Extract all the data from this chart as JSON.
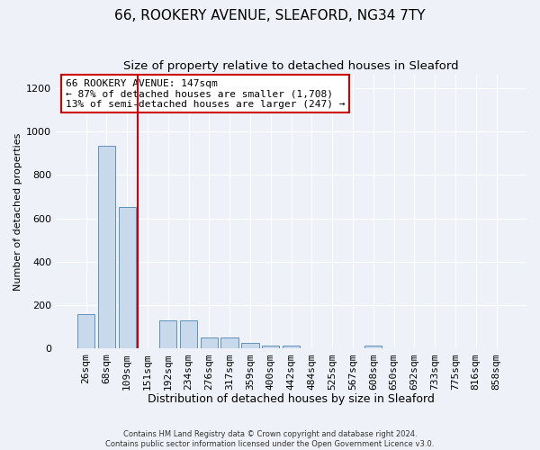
{
  "title1": "66, ROOKERY AVENUE, SLEAFORD, NG34 7TY",
  "title2": "Size of property relative to detached houses in Sleaford",
  "xlabel": "Distribution of detached houses by size in Sleaford",
  "ylabel": "Number of detached properties",
  "categories": [
    "26sqm",
    "68sqm",
    "109sqm",
    "151sqm",
    "192sqm",
    "234sqm",
    "276sqm",
    "317sqm",
    "359sqm",
    "400sqm",
    "442sqm",
    "484sqm",
    "525sqm",
    "567sqm",
    "608sqm",
    "650sqm",
    "692sqm",
    "733sqm",
    "775sqm",
    "816sqm",
    "858sqm"
  ],
  "values": [
    160,
    935,
    650,
    0,
    130,
    130,
    50,
    50,
    28,
    15,
    15,
    0,
    0,
    0,
    15,
    0,
    0,
    0,
    0,
    0,
    0
  ],
  "bar_color": "#c9d9ec",
  "bar_edge_color": "#6090bb",
  "vline_color": "#cc0000",
  "vline_x": 3.0,
  "annotation_text": "66 ROOKERY AVENUE: 147sqm\n← 87% of detached houses are smaller (1,708)\n13% of semi-detached houses are larger (247) →",
  "annotation_box_color": "#ffffff",
  "annotation_box_edge": "#cc0000",
  "ylim": [
    0,
    1260
  ],
  "yticks": [
    0,
    200,
    400,
    600,
    800,
    1000,
    1200
  ],
  "footer": "Contains HM Land Registry data © Crown copyright and database right 2024.\nContains public sector information licensed under the Open Government Licence v3.0.",
  "bg_color": "#eef2f8",
  "grid_color": "#ffffff",
  "title1_fontsize": 11,
  "title2_fontsize": 9.5,
  "xlabel_fontsize": 9,
  "ylabel_fontsize": 8,
  "tick_fontsize": 8,
  "annot_fontsize": 8
}
